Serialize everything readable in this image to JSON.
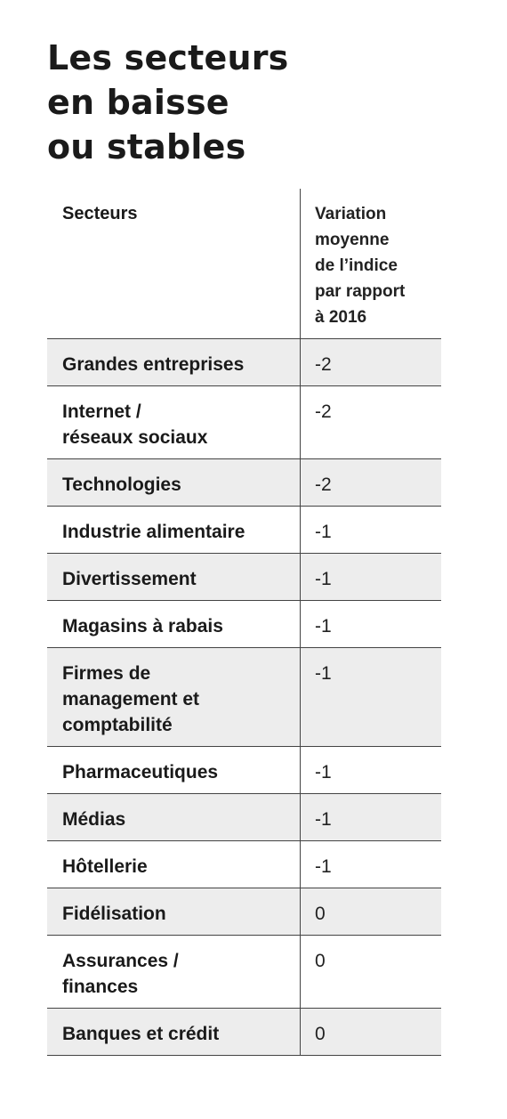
{
  "title_lines": [
    "Les secteurs",
    "en baisse",
    "ou stables"
  ],
  "table": {
    "headers": {
      "col1": "Secteurs",
      "col2_lines": [
        "Variation",
        "moyenne",
        "de l’indice",
        "par rapport",
        "à 2016"
      ]
    },
    "rows": [
      {
        "sector_lines": [
          "Grandes entreprises"
        ],
        "value": "-2",
        "height_lines": 1
      },
      {
        "sector_lines": [
          "Internet /",
          "réseaux sociaux"
        ],
        "value": "-2",
        "height_lines": 2
      },
      {
        "sector_lines": [
          "Technologies"
        ],
        "value": "-2",
        "height_lines": 1
      },
      {
        "sector_lines": [
          "Industrie alimentaire"
        ],
        "value": "-1",
        "height_lines": 1
      },
      {
        "sector_lines": [
          "Divertissement"
        ],
        "value": "-1",
        "height_lines": 1
      },
      {
        "sector_lines": [
          "Magasins à rabais"
        ],
        "value": "-1",
        "height_lines": 1
      },
      {
        "sector_lines": [
          "Firmes de",
          "management et",
          "comptabilité"
        ],
        "value": "-1",
        "height_lines": 3
      },
      {
        "sector_lines": [
          "Pharmaceutiques"
        ],
        "value": "-1",
        "height_lines": 1
      },
      {
        "sector_lines": [
          "Médias"
        ],
        "value": "-1",
        "height_lines": 1
      },
      {
        "sector_lines": [
          "Hôtellerie"
        ],
        "value": "-1",
        "height_lines": 1
      },
      {
        "sector_lines": [
          "Fidélisation"
        ],
        "value": "0",
        "height_lines": 1
      },
      {
        "sector_lines": [
          "Assurances /",
          "finances"
        ],
        "value": "0",
        "height_lines": 2
      },
      {
        "sector_lines": [
          "Banques et crédit"
        ],
        "value": "0",
        "height_lines": 1
      }
    ]
  },
  "colors": {
    "text": "#1a1a1a",
    "shaded_row": "#ededed",
    "rule": "#444444"
  }
}
